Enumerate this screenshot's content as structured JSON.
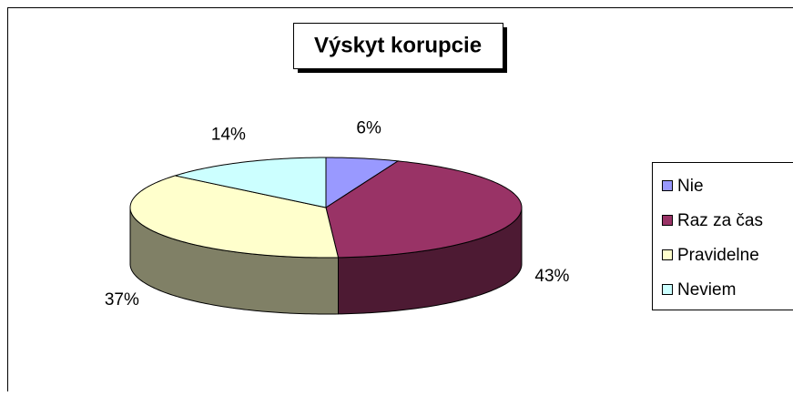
{
  "chart_data": {
    "type": "pie",
    "title": "Výskyt korupcie",
    "categories": [
      "Nie",
      "Raz za čas",
      "Pravidelne",
      "Neviem"
    ],
    "values": [
      6,
      43,
      37,
      14
    ],
    "value_labels": [
      "6%",
      "43%",
      "37%",
      "14%"
    ],
    "colors": [
      "#9999ff",
      "#993366",
      "#ffffcc",
      "#ccffff"
    ],
    "legend": "right"
  }
}
